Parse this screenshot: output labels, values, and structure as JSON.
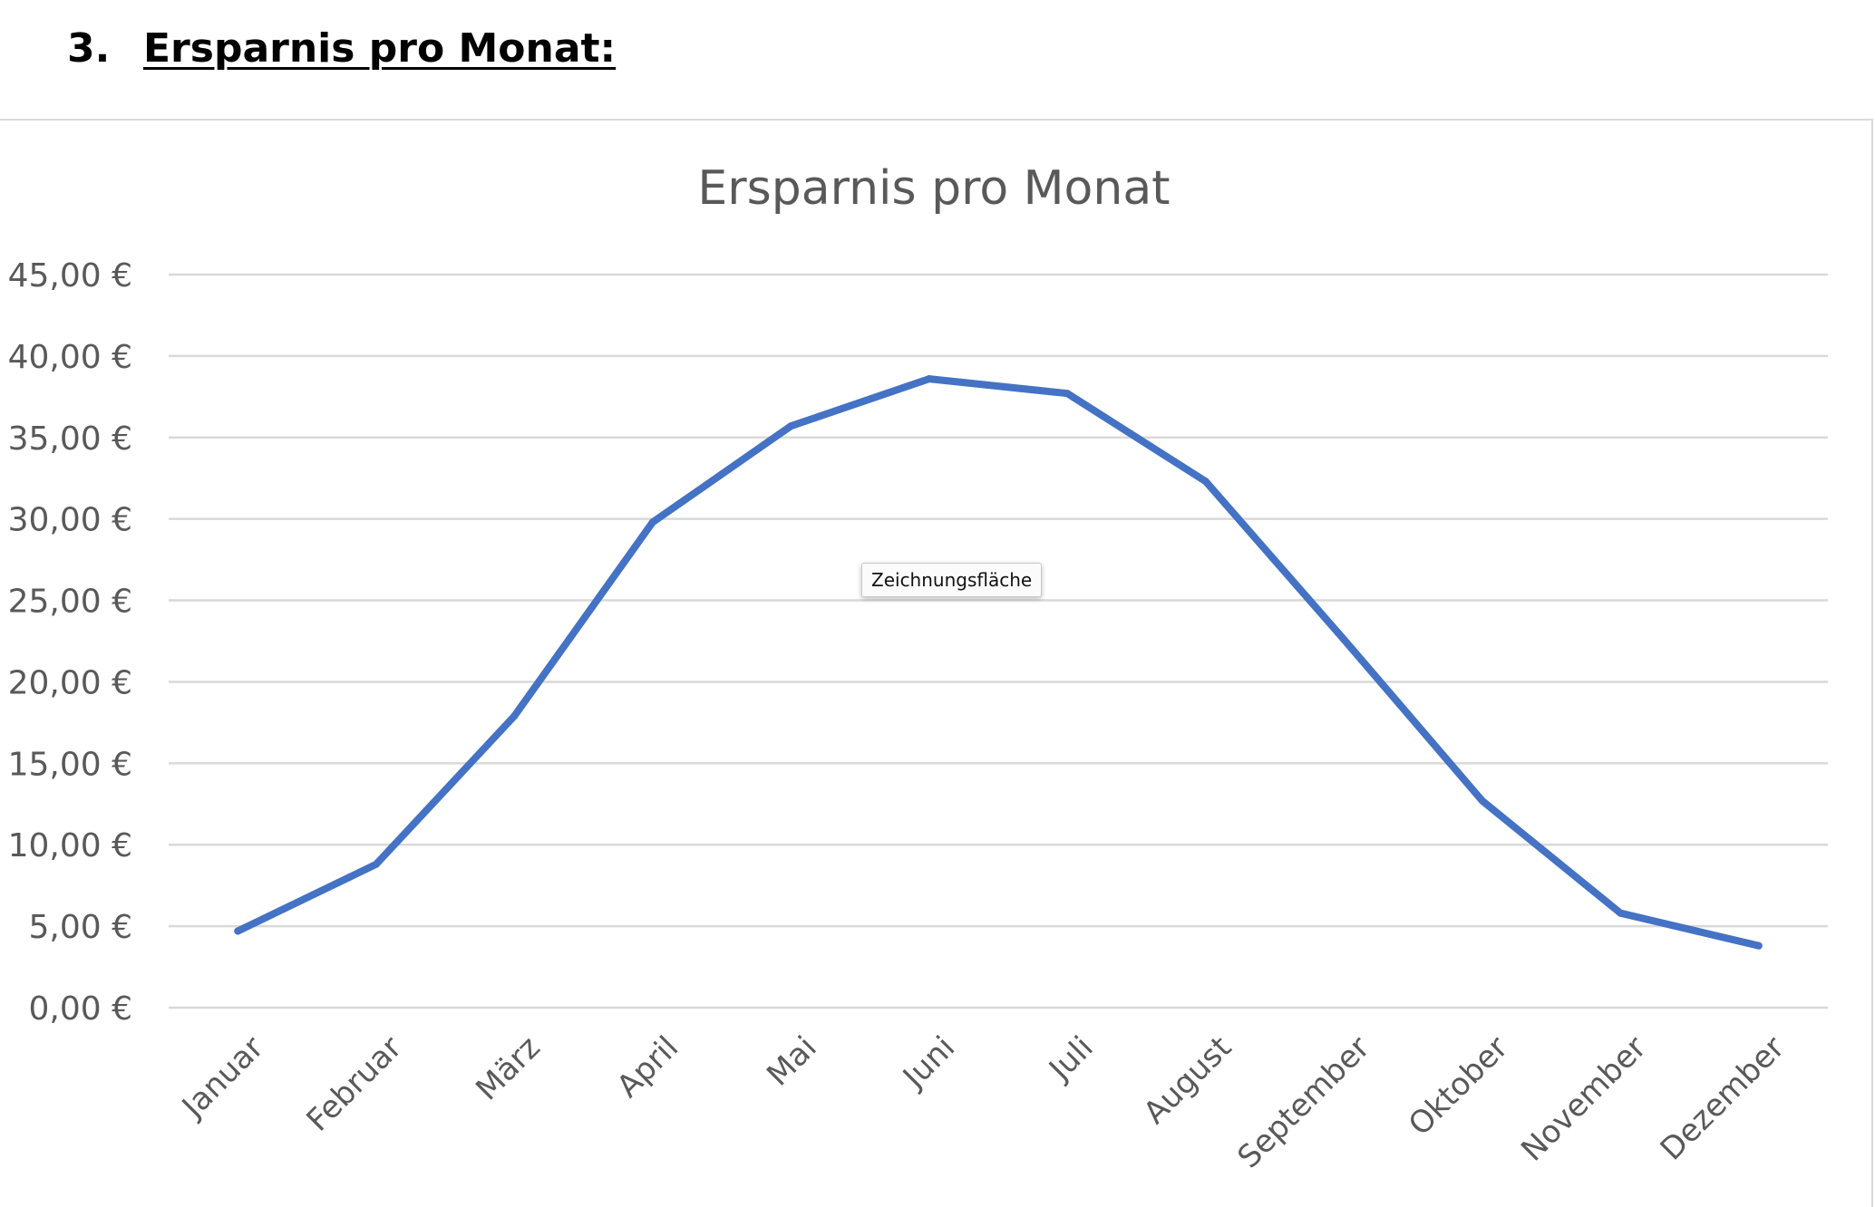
{
  "heading": {
    "number": "3.",
    "text": "Ersparnis pro Monat:"
  },
  "tooltip": "Zeichnungsfläche",
  "chart_data": {
    "type": "line",
    "title": "Ersparnis pro Monat",
    "xlabel": "",
    "ylabel": "",
    "categories": [
      "Januar",
      "Februar",
      "März",
      "April",
      "Mai",
      "Juni",
      "Juli",
      "August",
      "September",
      "Oktober",
      "November",
      "Dezember"
    ],
    "series": [
      {
        "values": [
          4.7,
          8.8,
          17.9,
          29.8,
          35.7,
          38.6,
          37.7,
          32.3,
          22.6,
          12.7,
          5.8,
          3.8
        ],
        "color": "#4472c4"
      }
    ],
    "ylim": [
      0,
      45
    ],
    "yticks": [
      0,
      5,
      10,
      15,
      20,
      25,
      30,
      35,
      40,
      45
    ],
    "ytick_labels": [
      "0,00 €",
      "5,00 €",
      "10,00 €",
      "15,00 €",
      "20,00 €",
      "25,00 €",
      "30,00 €",
      "35,00 €",
      "40,00 €",
      "45,00 €"
    ],
    "grid": true,
    "legend": "none",
    "colors": {
      "line": "#4472c4",
      "grid": "#d9d9d9",
      "text": "#595959"
    }
  }
}
